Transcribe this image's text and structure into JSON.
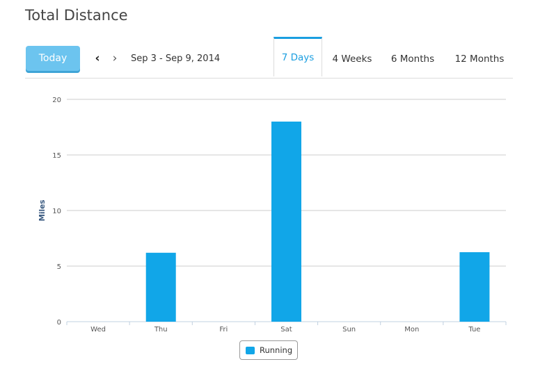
{
  "page": {
    "title": "Total Distance"
  },
  "toolbar": {
    "today_label": "Today",
    "prev_icon": "chevron-left-icon",
    "next_icon": "chevron-right-icon",
    "prev_glyph": "‹",
    "next_glyph": "›",
    "date_range": "Sep 3 - Sep 9, 2014"
  },
  "tabs": [
    {
      "label": "7 Days",
      "active": true
    },
    {
      "label": "4 Weeks",
      "active": false
    },
    {
      "label": "6 Months",
      "active": false
    },
    {
      "label": "12 Months",
      "active": false
    }
  ],
  "colors": {
    "accent": "#1a9ee0",
    "bar": "#11a6e8",
    "today_button": "#6cc4ef",
    "gridline": "#cccccc",
    "ylabel": "#3a5a80"
  },
  "chart_data": {
    "type": "bar",
    "title": "",
    "xlabel": "",
    "ylabel": "Miles",
    "ylim": [
      0,
      20
    ],
    "yticks": [
      0,
      5,
      10,
      15,
      20
    ],
    "grid": true,
    "legend_position": "bottom-center",
    "categories": [
      "Wed",
      "Thu",
      "Fri",
      "Sat",
      "Sun",
      "Mon",
      "Tue"
    ],
    "series": [
      {
        "name": "Running",
        "color": "#11a6e8",
        "values": [
          0,
          6.2,
          0,
          18.0,
          0,
          0,
          6.25
        ]
      }
    ]
  }
}
